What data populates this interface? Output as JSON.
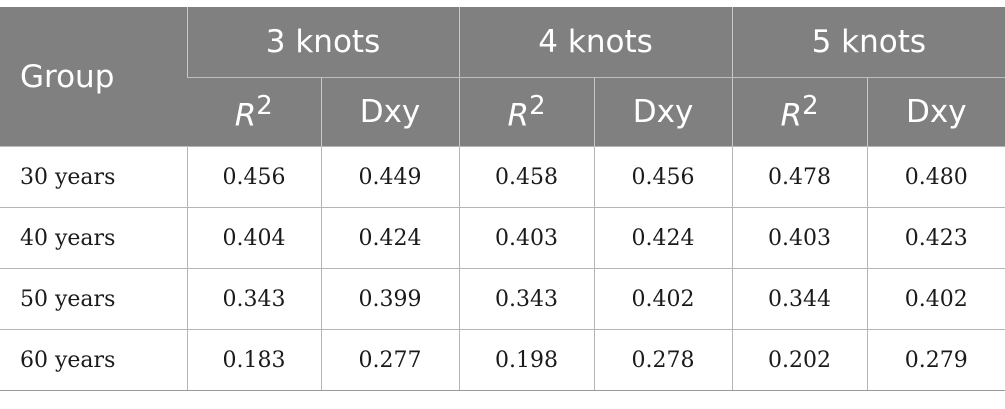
{
  "table": {
    "header": {
      "group_label": "Group",
      "spans": [
        "3 knots",
        "4 knots",
        "5 knots"
      ],
      "sub": {
        "r2": "R",
        "r2_sup": "2",
        "dxy": "Dxy"
      }
    },
    "rows": [
      {
        "group": "30 years",
        "values": [
          "0.456",
          "0.449",
          "0.458",
          "0.456",
          "0.478",
          "0.480"
        ]
      },
      {
        "group": "40 years",
        "values": [
          "0.404",
          "0.424",
          "0.403",
          "0.424",
          "0.403",
          "0.423"
        ]
      },
      {
        "group": "50 years",
        "values": [
          "0.343",
          "0.399",
          "0.343",
          "0.402",
          "0.344",
          "0.402"
        ]
      },
      {
        "group": "60 years",
        "values": [
          "0.183",
          "0.277",
          "0.198",
          "0.278",
          "0.202",
          "0.279"
        ]
      }
    ]
  },
  "colors": {
    "header_background": "#808080",
    "header_text": "#ffffff",
    "body_text": "#1a1a1a",
    "rule": "#b5b5b5"
  }
}
